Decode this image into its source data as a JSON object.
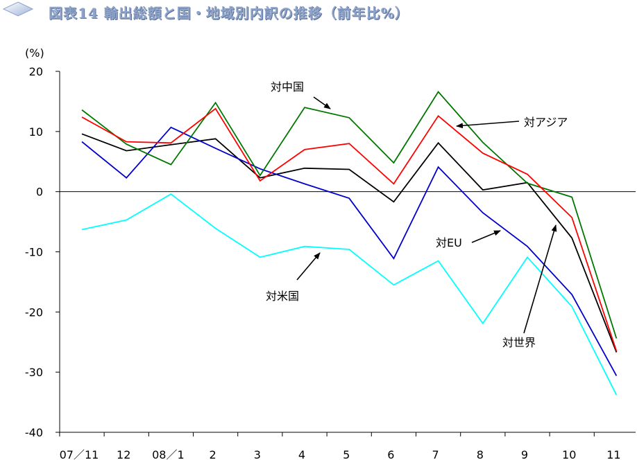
{
  "header": {
    "title": "図表14 輸出総額と国・地域別内訳の推移（前年比%）"
  },
  "chart_data": {
    "type": "line",
    "title": "図表14 輸出総額と国・地域別内訳の推移（前年比%）",
    "ylabel": "(%)",
    "xlabel": "",
    "ylim": [
      -40,
      20
    ],
    "yticks": [
      20,
      10,
      0,
      -10,
      -20,
      -30,
      -40
    ],
    "ytick_labels": [
      "20",
      "10",
      "0",
      "-10",
      "-20",
      "-30",
      "-40"
    ],
    "categories": [
      "07／11",
      "12",
      "08／1",
      "2",
      "3",
      "4",
      "5",
      "6",
      "7",
      "8",
      "9",
      "10",
      "11"
    ],
    "grid": false,
    "legend": "annotations",
    "series": [
      {
        "name": "対世界",
        "color": "#000000",
        "values": [
          9.6,
          6.8,
          7.8,
          8.8,
          2.3,
          3.9,
          3.7,
          -1.7,
          8.1,
          0.3,
          1.5,
          -7.7,
          -26.7
        ]
      },
      {
        "name": "対米国",
        "color": "#00ffff",
        "values": [
          -6.3,
          -4.7,
          -0.4,
          -6.1,
          -10.9,
          -9.1,
          -9.6,
          -15.5,
          -11.5,
          -21.9,
          -10.9,
          -19.1,
          -33.8
        ]
      },
      {
        "name": "対EU",
        "color": "#0000cc",
        "values": [
          8.3,
          2.3,
          10.7,
          7.2,
          3.8,
          1.3,
          -1.1,
          -11.1,
          4.1,
          -3.5,
          -9.1,
          -17.1,
          -30.6
        ]
      },
      {
        "name": "対中国",
        "color": "#007700",
        "values": [
          13.6,
          7.9,
          4.5,
          14.8,
          2.7,
          14.0,
          12.3,
          4.8,
          16.6,
          8.2,
          1.4,
          -0.9,
          -24.4
        ]
      },
      {
        "name": "対アジア",
        "color": "#ff0000",
        "values": [
          12.4,
          8.3,
          8.1,
          13.8,
          1.8,
          7.0,
          8.0,
          1.3,
          12.6,
          6.4,
          2.9,
          -4.3,
          -26.5
        ]
      }
    ],
    "annotations": [
      {
        "text": "対中国",
        "series": "対中国"
      },
      {
        "text": "対アジア",
        "series": "対アジア"
      },
      {
        "text": "対EU",
        "series": "対EU"
      },
      {
        "text": "対米国",
        "series": "対米国"
      },
      {
        "text": "対世界",
        "series": "対世界"
      }
    ]
  }
}
